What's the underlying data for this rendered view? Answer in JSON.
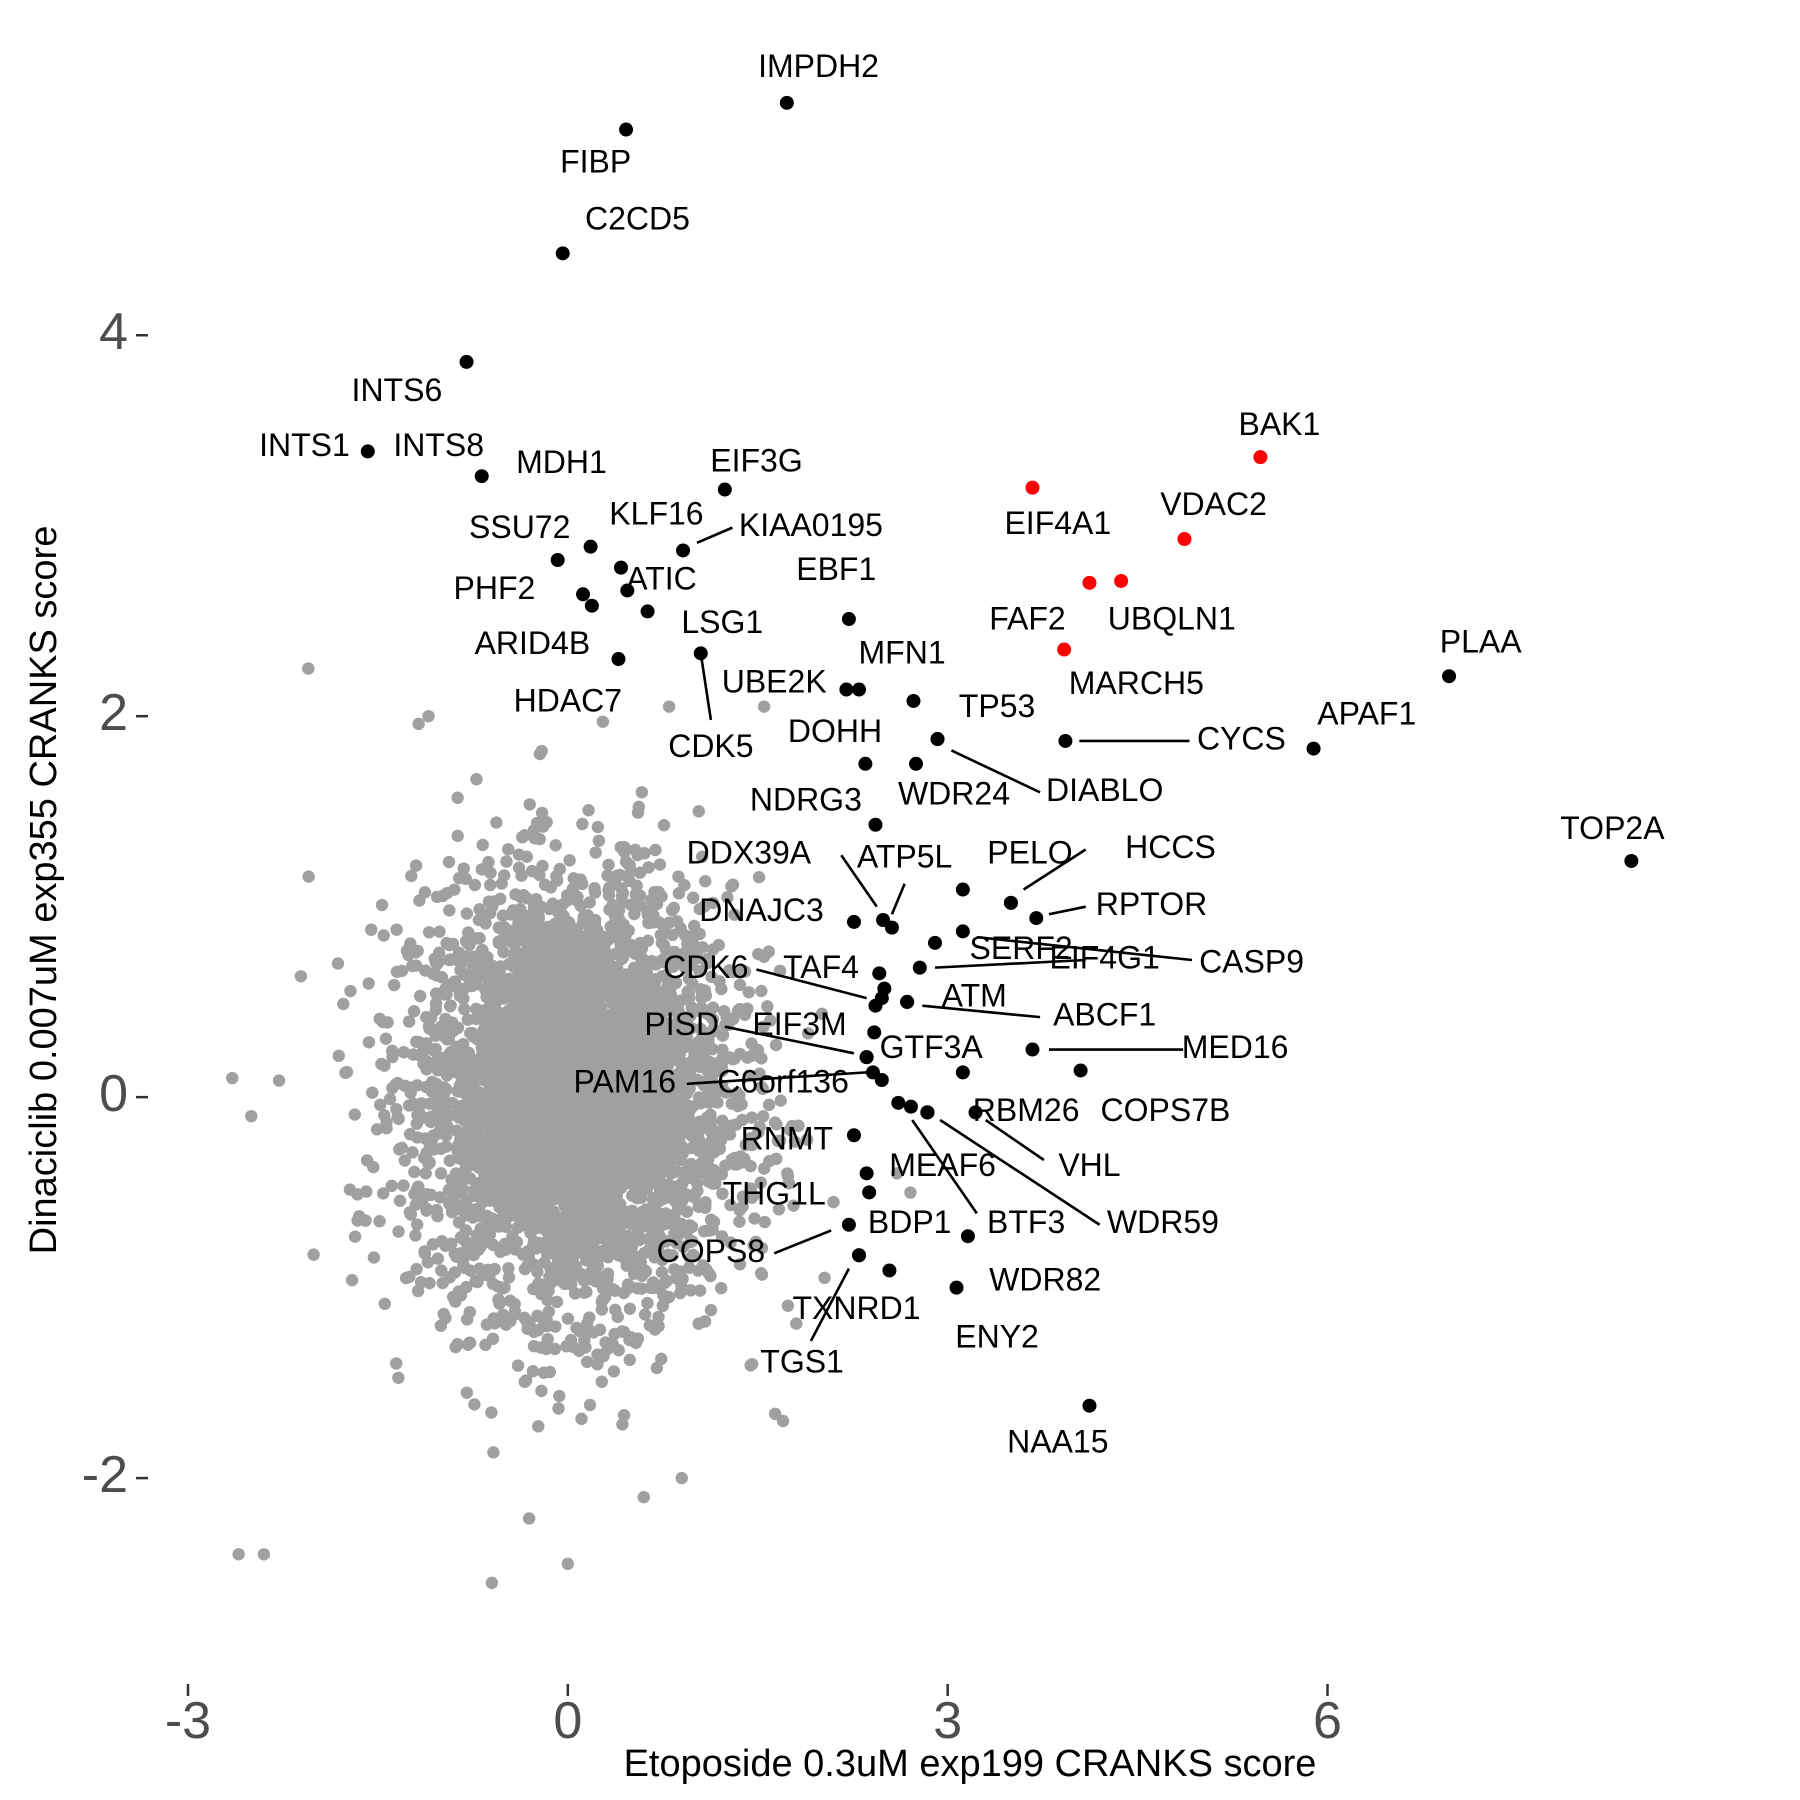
{
  "chart_data": {
    "type": "scatter",
    "title": "",
    "xlabel": "Etoposide 0.3uM exp199 CRANKS score",
    "ylabel": "Dinaciclib 0.007uM exp355 CRANKS score",
    "xlim": [
      -3.3,
      9.1
    ],
    "ylim": [
      -2.85,
      5.55
    ],
    "x_ticks": [
      -3,
      0,
      3,
      6
    ],
    "x_tick_labels": [
      "-3",
      "0",
      "3",
      "6"
    ],
    "y_ticks": [
      -2,
      0,
      2,
      4
    ],
    "y_tick_labels": [
      "-2",
      "0",
      "2",
      "4"
    ],
    "grid": false,
    "legend": "none",
    "colors": {
      "background_points": "#a0a0a0",
      "highlight_points": "#000000",
      "red_points": "#ff0000",
      "axis_text": "#4d4d4d",
      "label_text": "#000000"
    },
    "background_cloud": {
      "color": "#a0a0a0",
      "description_points": "dense cloud of thousands of non-highlighted genes",
      "x_center": 0.05,
      "y_center": 0.0,
      "x_sd": 0.62,
      "y_sd": 0.55,
      "count": 4200,
      "outliers": [
        [
          -2.05,
          2.25
        ],
        [
          -1.1,
          2.0
        ],
        [
          0.8,
          2.05
        ],
        [
          1.55,
          2.05
        ],
        [
          -2.6,
          -2.4
        ],
        [
          -2.4,
          -2.4
        ],
        [
          0.0,
          -2.45
        ],
        [
          -0.6,
          -2.55
        ],
        [
          2.6,
          -0.4
        ],
        [
          1.7,
          -1.7
        ],
        [
          -2.65,
          0.1
        ],
        [
          -2.5,
          -0.1
        ],
        [
          0.6,
          -2.1
        ],
        [
          0.9,
          -2.0
        ]
      ]
    },
    "points": [
      {
        "name": "IMPDH2",
        "x": 1.73,
        "y": 5.22,
        "color": "black"
      },
      {
        "name": "FIBP",
        "x": 0.46,
        "y": 5.08,
        "color": "black"
      },
      {
        "name": "C2CD5",
        "x": -0.04,
        "y": 4.43,
        "color": "black"
      },
      {
        "name": "INTS6",
        "x": -0.8,
        "y": 3.86,
        "color": "black"
      },
      {
        "name": "INTS1",
        "x": -1.58,
        "y": 3.39,
        "color": "black"
      },
      {
        "name": "INTS8",
        "x": -0.68,
        "y": 3.26,
        "color": "black"
      },
      {
        "name": "MDH1",
        "x": 0.18,
        "y": 2.89,
        "color": "black"
      },
      {
        "name": "EIF3G",
        "x": 1.24,
        "y": 3.19,
        "color": "black"
      },
      {
        "name": "KLF16",
        "x": 0.42,
        "y": 2.78,
        "color": "black"
      },
      {
        "name": "KIAA0195",
        "x": 0.91,
        "y": 2.87,
        "color": "black"
      },
      {
        "name": "SSU72",
        "x": -0.08,
        "y": 2.82,
        "color": "black"
      },
      {
        "name": "ATIC",
        "x": 0.47,
        "y": 2.66,
        "color": "black"
      },
      {
        "name": "PHF2",
        "x": 0.12,
        "y": 2.64,
        "color": "black"
      },
      {
        "name": "",
        "x": 0.19,
        "y": 2.58,
        "color": "black"
      },
      {
        "name": "",
        "x": 0.63,
        "y": 2.55,
        "color": "black"
      },
      {
        "name": "ARID4B",
        "x": 0.4,
        "y": 2.3,
        "color": "black"
      },
      {
        "name": "LSG1",
        "x": 1.05,
        "y": 2.33,
        "color": "black"
      },
      {
        "name": "EBF1",
        "x": 2.22,
        "y": 2.51,
        "color": "black"
      },
      {
        "name": "UBE2K",
        "x": 2.2,
        "y": 2.14,
        "color": "black"
      },
      {
        "name": "MFN1",
        "x": 2.3,
        "y": 2.14,
        "color": "black"
      },
      {
        "name": "",
        "x": 2.73,
        "y": 2.08,
        "color": "black"
      },
      {
        "name": "TP53",
        "x": 2.92,
        "y": 1.88,
        "color": "black"
      },
      {
        "name": "DOHH",
        "x": 2.35,
        "y": 1.75,
        "color": "black"
      },
      {
        "name": "WDR24",
        "x": 2.75,
        "y": 1.75,
        "color": "black"
      },
      {
        "name": "DIABLO",
        "x": 2.92,
        "y": 1.88,
        "color": "black"
      },
      {
        "name": "CYCS",
        "x": 3.93,
        "y": 1.87,
        "color": "black"
      },
      {
        "name": "APAF1",
        "x": 5.89,
        "y": 1.83,
        "color": "black"
      },
      {
        "name": "PLAA",
        "x": 6.96,
        "y": 2.21,
        "color": "black"
      },
      {
        "name": "TOP2A",
        "x": 8.4,
        "y": 1.24,
        "color": "black"
      },
      {
        "name": "NDRG3",
        "x": 2.43,
        "y": 1.43,
        "color": "black"
      },
      {
        "name": "",
        "x": 3.12,
        "y": 1.09,
        "color": "black"
      },
      {
        "name": "PELO",
        "x": 3.5,
        "y": 1.02,
        "color": "black"
      },
      {
        "name": "HCCS",
        "x": 3.5,
        "y": 1.02,
        "color": "black"
      },
      {
        "name": "RPTOR",
        "x": 3.7,
        "y": 0.94,
        "color": "black"
      },
      {
        "name": "DDX39A",
        "x": 2.49,
        "y": 0.93,
        "color": "black"
      },
      {
        "name": "ATP5L",
        "x": 2.56,
        "y": 0.89,
        "color": "black"
      },
      {
        "name": "DNAJC3",
        "x": 2.26,
        "y": 0.92,
        "color": "black"
      },
      {
        "name": "CASP9",
        "x": 3.12,
        "y": 0.87,
        "color": "black"
      },
      {
        "name": "SERF2",
        "x": 2.9,
        "y": 0.81,
        "color": "black"
      },
      {
        "name": "EIF4G1",
        "x": 2.78,
        "y": 0.68,
        "color": "black"
      },
      {
        "name": "CDK6",
        "x": 2.46,
        "y": 0.65,
        "color": "black"
      },
      {
        "name": "TAF4",
        "x": 2.5,
        "y": 0.57,
        "color": "black"
      },
      {
        "name": "ATM",
        "x": 2.68,
        "y": 0.5,
        "color": "black"
      },
      {
        "name": "ABCF1",
        "x": 2.68,
        "y": 0.5,
        "color": "black"
      },
      {
        "name": "",
        "x": 2.48,
        "y": 0.52,
        "color": "black"
      },
      {
        "name": "EIF3M",
        "x": 2.43,
        "y": 0.48,
        "color": "black"
      },
      {
        "name": "",
        "x": 2.42,
        "y": 0.34,
        "color": "black"
      },
      {
        "name": "PISD",
        "x": 2.36,
        "y": 0.21,
        "color": "black"
      },
      {
        "name": "GTF3A",
        "x": 2.36,
        "y": 0.21,
        "color": "black"
      },
      {
        "name": "MED16",
        "x": 3.67,
        "y": 0.25,
        "color": "black"
      },
      {
        "name": "COPS7B",
        "x": 4.05,
        "y": 0.14,
        "color": "black"
      },
      {
        "name": "",
        "x": 3.12,
        "y": 0.13,
        "color": "black"
      },
      {
        "name": "C6orf136",
        "x": 2.41,
        "y": 0.13,
        "color": "black"
      },
      {
        "name": "PAM16",
        "x": 2.48,
        "y": 0.09,
        "color": "black"
      },
      {
        "name": "RBM26",
        "x": 3.22,
        "y": -0.08,
        "color": "black"
      },
      {
        "name": "VHL",
        "x": 2.61,
        "y": -0.03,
        "color": "black"
      },
      {
        "name": "",
        "x": 2.71,
        "y": -0.05,
        "color": "black"
      },
      {
        "name": "MEAF6",
        "x": 2.84,
        "y": -0.08,
        "color": "black"
      },
      {
        "name": "WDR59",
        "x": 2.84,
        "y": -0.08,
        "color": "black"
      },
      {
        "name": "BTF3",
        "x": 2.84,
        "y": -0.08,
        "color": "black"
      },
      {
        "name": "RNMT",
        "x": 2.26,
        "y": -0.2,
        "color": "black"
      },
      {
        "name": "",
        "x": 2.36,
        "y": -0.4,
        "color": "black"
      },
      {
        "name": "THG1L",
        "x": 2.38,
        "y": -0.5,
        "color": "black"
      },
      {
        "name": "BDP1",
        "x": 3.16,
        "y": -0.73,
        "color": "black"
      },
      {
        "name": "COPS8",
        "x": 2.22,
        "y": -0.67,
        "color": "black"
      },
      {
        "name": "TXNRD1",
        "x": 2.3,
        "y": -0.83,
        "color": "black"
      },
      {
        "name": "TGS1",
        "x": 2.3,
        "y": -0.83,
        "color": "black"
      },
      {
        "name": "WDR82",
        "x": 2.54,
        "y": -0.91,
        "color": "black"
      },
      {
        "name": "ENY2",
        "x": 3.07,
        "y": -1.0,
        "color": "black"
      },
      {
        "name": "NAA15",
        "x": 4.12,
        "y": -1.62,
        "color": "black"
      },
      {
        "name": "BAK1",
        "x": 5.47,
        "y": 3.36,
        "color": "red"
      },
      {
        "name": "EIF4A1",
        "x": 3.67,
        "y": 3.2,
        "color": "red"
      },
      {
        "name": "VDAC2",
        "x": 4.87,
        "y": 2.93,
        "color": "red"
      },
      {
        "name": "FAF2",
        "x": 4.12,
        "y": 2.7,
        "color": "red"
      },
      {
        "name": "UBQLN1",
        "x": 4.37,
        "y": 2.71,
        "color": "red"
      },
      {
        "name": "MARCH5",
        "x": 3.92,
        "y": 2.35,
        "color": "red"
      }
    ],
    "labels": [
      {
        "text": "IMPDH2",
        "lx": 1.98,
        "ly": 5.4
      },
      {
        "text": "FIBP",
        "lx": 0.22,
        "ly": 4.9
      },
      {
        "text": "C2CD5",
        "lx": 0.55,
        "ly": 4.6
      },
      {
        "text": "INTS6",
        "lx": -1.35,
        "ly": 3.7
      },
      {
        "text": "INTS1",
        "lx": -2.08,
        "ly": 3.41
      },
      {
        "text": "INTS8",
        "lx": -1.02,
        "ly": 3.41
      },
      {
        "text": "MDH1",
        "lx": -0.05,
        "ly": 3.32
      },
      {
        "text": "EIF3G",
        "lx": 1.49,
        "ly": 3.33,
        "line_from": [
          1.24,
          3.19
        ]
      },
      {
        "text": "KLF16",
        "lx": 0.7,
        "ly": 3.05
      },
      {
        "text": "KIAA0195",
        "lx": 1.92,
        "ly": 2.99,
        "line_from": [
          1.02,
          2.91
        ],
        "line_to": [
          1.3,
          2.99
        ]
      },
      {
        "text": "SSU72",
        "lx": -0.38,
        "ly": 2.98
      },
      {
        "text": "ATIC",
        "lx": 0.74,
        "ly": 2.71
      },
      {
        "text": "PHF2",
        "lx": -0.58,
        "ly": 2.66
      },
      {
        "text": "ARID4B",
        "lx": -0.28,
        "ly": 2.37
      },
      {
        "text": "HDAC7",
        "lx": 0.0,
        "ly": 2.07
      },
      {
        "text": "LSG1",
        "lx": 1.22,
        "ly": 2.48
      },
      {
        "text": "CDK5",
        "lx": 1.13,
        "ly": 1.83,
        "line_from": [
          1.05,
          2.33
        ],
        "line_to": [
          1.13,
          1.98
        ]
      },
      {
        "text": "EBF1",
        "lx": 2.12,
        "ly": 2.76
      },
      {
        "text": "UBE2K",
        "lx": 1.63,
        "ly": 2.17
      },
      {
        "text": "MFN1",
        "lx": 2.64,
        "ly": 2.32
      },
      {
        "text": "TP53",
        "lx": 3.39,
        "ly": 2.04
      },
      {
        "text": "DOHH",
        "lx": 2.11,
        "ly": 1.91
      },
      {
        "text": "WDR24",
        "lx": 3.05,
        "ly": 1.58
      },
      {
        "text": "DIABLO",
        "lx": 4.24,
        "ly": 1.6,
        "line_from": [
          3.03,
          1.82
        ],
        "line_to": [
          3.73,
          1.6
        ]
      },
      {
        "text": "CYCS",
        "lx": 5.32,
        "ly": 1.87,
        "line_from": [
          4.04,
          1.87
        ],
        "line_to": [
          4.91,
          1.87
        ]
      },
      {
        "text": "APAF1",
        "lx": 6.31,
        "ly": 2.0
      },
      {
        "text": "PLAA",
        "lx": 7.21,
        "ly": 2.38
      },
      {
        "text": "TOP2A",
        "lx": 8.25,
        "ly": 1.4
      },
      {
        "text": "NDRG3",
        "lx": 1.88,
        "ly": 1.55
      },
      {
        "text": "PELO",
        "lx": 3.65,
        "ly": 1.27
      },
      {
        "text": "HCCS",
        "lx": 4.76,
        "ly": 1.3,
        "line_from": [
          3.6,
          1.09
        ],
        "line_to": [
          4.09,
          1.3
        ]
      },
      {
        "text": "RPTOR",
        "lx": 4.61,
        "ly": 1.0,
        "line_from": [
          3.8,
          0.96
        ],
        "line_to": [
          4.09,
          1.0
        ]
      },
      {
        "text": "DDX39A",
        "lx": 1.43,
        "ly": 1.27,
        "line_from": [
          2.44,
          1.0
        ],
        "line_to": [
          2.16,
          1.27
        ]
      },
      {
        "text": "ATP5L",
        "lx": 2.66,
        "ly": 1.25,
        "line_from": [
          2.56,
          0.96
        ],
        "line_to": [
          2.66,
          1.12
        ]
      },
      {
        "text": "DNAJC3",
        "lx": 1.53,
        "ly": 0.97
      },
      {
        "text": "CASP9",
        "lx": 5.4,
        "ly": 0.7,
        "line_from": [
          3.23,
          0.84
        ],
        "line_to": [
          4.93,
          0.72
        ]
      },
      {
        "text": "SERF2",
        "lx": 3.58,
        "ly": 0.77
      },
      {
        "text": "EIF4G1",
        "lx": 4.24,
        "ly": 0.72,
        "line_from": [
          2.9,
          0.68
        ],
        "line_to": [
          4.09,
          0.72
        ]
      },
      {
        "text": "CDK6",
        "lx": 1.09,
        "ly": 0.67,
        "line_from": [
          1.49,
          0.67
        ],
        "line_to": [
          2.36,
          0.52
        ]
      },
      {
        "text": "TAF4",
        "lx": 2.0,
        "ly": 0.67
      },
      {
        "text": "ATM",
        "lx": 3.21,
        "ly": 0.52
      },
      {
        "text": "ABCF1",
        "lx": 4.24,
        "ly": 0.42,
        "line_from": [
          2.8,
          0.48
        ],
        "line_to": [
          3.73,
          0.42
        ]
      },
      {
        "text": "PISD",
        "lx": 0.9,
        "ly": 0.37,
        "line_from": [
          1.24,
          0.37
        ],
        "line_to": [
          2.26,
          0.23
        ]
      },
      {
        "text": "EIF3M",
        "lx": 1.83,
        "ly": 0.37
      },
      {
        "text": "GTF3A",
        "lx": 2.87,
        "ly": 0.25
      },
      {
        "text": "MED16",
        "lx": 5.27,
        "ly": 0.25,
        "line_from": [
          3.8,
          0.25
        ],
        "line_to": [
          4.86,
          0.25
        ]
      },
      {
        "text": "COPS7B",
        "lx": 4.72,
        "ly": -0.08
      },
      {
        "text": "C6orf136",
        "lx": 1.7,
        "ly": 0.07
      },
      {
        "text": "PAM16",
        "lx": 0.45,
        "ly": 0.07,
        "line_from": [
          0.94,
          0.07
        ],
        "line_to": [
          2.36,
          0.13
        ]
      },
      {
        "text": "RBM26",
        "lx": 3.62,
        "ly": -0.08
      },
      {
        "text": "VHL",
        "lx": 4.12,
        "ly": -0.37,
        "line_from": [
          3.3,
          -0.12
        ],
        "line_to": [
          3.76,
          -0.33
        ]
      },
      {
        "text": "MEAF6",
        "lx": 2.96,
        "ly": -0.37
      },
      {
        "text": "WDR59",
        "lx": 4.7,
        "ly": -0.67,
        "line_from": [
          2.94,
          -0.12
        ],
        "line_to": [
          4.2,
          -0.67
        ]
      },
      {
        "text": "BTF3",
        "lx": 3.62,
        "ly": -0.67,
        "line_from": [
          2.72,
          -0.12
        ],
        "line_to": [
          3.23,
          -0.61
        ]
      },
      {
        "text": "RNMT",
        "lx": 1.73,
        "ly": -0.23
      },
      {
        "text": "THG1L",
        "lx": 1.63,
        "ly": -0.52
      },
      {
        "text": "BDP1",
        "lx": 2.7,
        "ly": -0.67
      },
      {
        "text": "COPS8",
        "lx": 1.13,
        "ly": -0.82,
        "line_from": [
          1.63,
          -0.82
        ],
        "line_to": [
          2.08,
          -0.7
        ]
      },
      {
        "text": "TXNRD1",
        "lx": 2.28,
        "ly": -1.12
      },
      {
        "text": "TGS1",
        "lx": 1.85,
        "ly": -1.4,
        "line_from": [
          1.92,
          -1.28
        ],
        "line_to": [
          2.22,
          -0.9
        ]
      },
      {
        "text": "WDR82",
        "lx": 3.77,
        "ly": -0.97
      },
      {
        "text": "ENY2",
        "lx": 3.39,
        "ly": -1.27
      },
      {
        "text": "NAA15",
        "lx": 3.87,
        "ly": -1.82
      },
      {
        "text": "BAK1",
        "lx": 5.62,
        "ly": 3.52
      },
      {
        "text": "EIF4A1",
        "lx": 3.87,
        "ly": 3.0
      },
      {
        "text": "VDAC2",
        "lx": 5.1,
        "ly": 3.1
      },
      {
        "text": "FAF2",
        "lx": 3.63,
        "ly": 2.5
      },
      {
        "text": "UBQLN1",
        "lx": 4.77,
        "ly": 2.5
      },
      {
        "text": "MARCH5",
        "lx": 4.49,
        "ly": 2.16
      }
    ]
  }
}
